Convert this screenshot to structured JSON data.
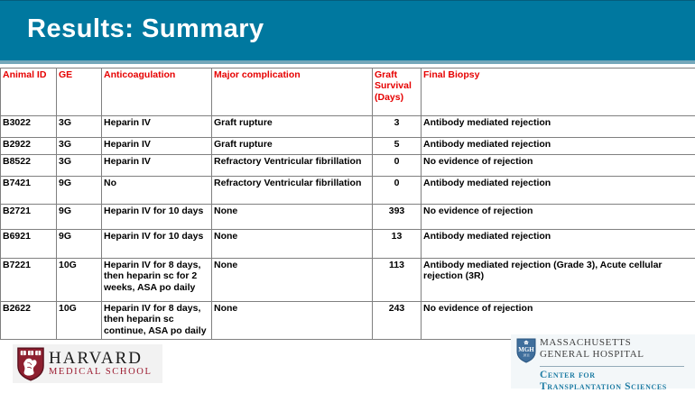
{
  "slide": {
    "title": "Results: Summary"
  },
  "table": {
    "columns": [
      "Animal ID",
      "GE",
      "Anticoagulation",
      "Major complication",
      "Graft Survival (Days)",
      "Final Biopsy"
    ],
    "rows": [
      [
        "B3022",
        "3G",
        "Heparin IV",
        "Graft rupture",
        "3",
        "Antibody mediated rejection"
      ],
      [
        "B2922",
        "3G",
        "Heparin IV",
        "Graft rupture",
        "5",
        "Antibody mediated rejection"
      ],
      [
        "B8522",
        "3G",
        "Heparin IV",
        "Refractory Ventricular fibrillation",
        "0",
        "No evidence of rejection"
      ],
      [
        "B7421",
        "9G",
        "No",
        "Refractory Ventricular fibrillation",
        "0",
        "Antibody mediated rejection"
      ],
      [
        "B2721",
        "9G",
        "Heparin IV for 10 days",
        "None",
        "393",
        "No evidence of rejection"
      ],
      [
        "B6921",
        "9G",
        "Heparin IV for 10 days",
        "None",
        "13",
        "Antibody mediated rejection"
      ],
      [
        "B7221",
        "10G",
        "Heparin IV for 8 days, then heparin sc for 2 weeks, ASA po daily",
        "None",
        "113",
        "Antibody mediated rejection (Grade 3), Acute cellular rejection (3R)"
      ],
      [
        "B2622",
        "10G",
        "Heparin IV for 8 days, then heparin sc continue, ASA po daily",
        "None",
        "243",
        "No evidence of rejection"
      ]
    ]
  },
  "footer": {
    "harvard": {
      "line1": "HARVARD",
      "line2": "MEDICAL SCHOOL",
      "shield_label": "VE RI TAS"
    },
    "mgh": {
      "shield_top": "MGH",
      "shield_year": "1811",
      "line1": "MASSACHUSETTS",
      "line2": "GENERAL HOSPITAL",
      "line3": "Center for",
      "line4": "Transplantation Sciences"
    }
  },
  "colors": {
    "band": "#00789f",
    "band_accent": "#74a7ba",
    "header_red": "#e60000",
    "harvard_crimson": "#9c1b30",
    "mgh_blue": "#3f6e9c",
    "mgh_teal": "#1e7ca4"
  }
}
